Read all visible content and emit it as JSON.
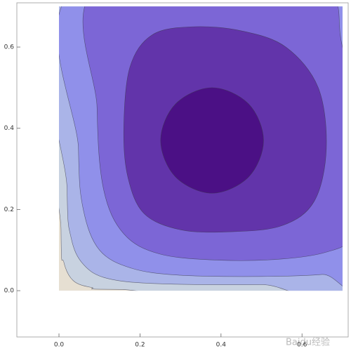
{
  "chart_data": {
    "type": "contour",
    "xlim": [
      -0.104,
      0.714
    ],
    "ylim": [
      -0.114,
      0.709
    ],
    "xticks": [
      {
        "value": 0,
        "label": "0.0"
      },
      0.2,
      0.4,
      0.6
    ],
    "yticks": [
      {
        "value": 0,
        "label": "0.0"
      },
      0.2,
      0.4,
      0.6
    ],
    "region": {
      "x": [
        0,
        0.7
      ],
      "y": [
        0,
        0.7
      ],
      "color": "#e6dfd2"
    },
    "contours": [
      {
        "color": "#c8d2e0",
        "x": [
          0.005,
          0.005,
          0.012,
          0.035,
          0.08,
          0.15,
          0.75,
          0.75
        ],
        "y": [
          0.75,
          0.15,
          0.07,
          0.025,
          0.008,
          0.003,
          0.003,
          0.75
        ]
      },
      {
        "color": "#aab4e8",
        "x": [
          0.02,
          0.02,
          0.03,
          0.06,
          0.12,
          0.25,
          0.5,
          0.75,
          0.75
        ],
        "y": [
          0.75,
          0.25,
          0.13,
          0.065,
          0.03,
          0.017,
          0.015,
          0.02,
          0.75
        ]
      },
      {
        "color": "#9090ea",
        "x": [
          0.048,
          0.048,
          0.06,
          0.1,
          0.18,
          0.3,
          0.5,
          0.65,
          0.75,
          0.75
        ],
        "y": [
          0.75,
          0.35,
          0.2,
          0.1,
          0.055,
          0.038,
          0.035,
          0.04,
          0.055,
          0.75
        ]
      },
      {
        "color": "#7c66d6",
        "x": [
          0.1,
          0.094,
          0.11,
          0.16,
          0.25,
          0.4,
          0.55,
          0.66,
          0.72,
          0.75,
          0.7,
          0.62
        ],
        "y": [
          0.75,
          0.45,
          0.25,
          0.14,
          0.09,
          0.075,
          0.078,
          0.095,
          0.13,
          0.25,
          0.6,
          0.75
        ]
      },
      {
        "color": "#6234aa",
        "x": [
          0.16,
          0.175,
          0.23,
          0.33,
          0.45,
          0.56,
          0.64,
          0.66,
          0.63,
          0.55,
          0.42,
          0.3,
          0.21,
          0.17
        ],
        "y": [
          0.4,
          0.55,
          0.63,
          0.65,
          0.64,
          0.6,
          0.5,
          0.35,
          0.22,
          0.16,
          0.145,
          0.15,
          0.19,
          0.28
        ]
      },
      {
        "color": "#4b1085",
        "x": [
          0.505,
          0.468,
          0.378,
          0.288,
          0.251,
          0.288,
          0.378,
          0.468
        ],
        "y": [
          0.37,
          0.46,
          0.5,
          0.46,
          0.37,
          0.28,
          0.24,
          0.28
        ]
      }
    ],
    "watermark": "Baidu经验"
  }
}
